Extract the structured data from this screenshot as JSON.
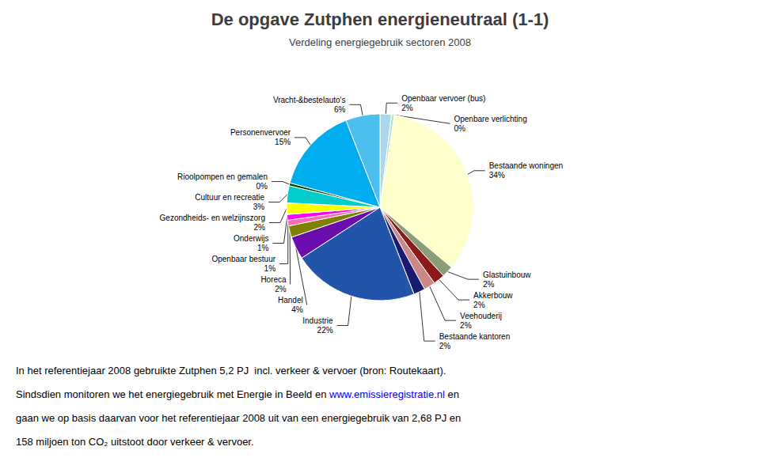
{
  "chart_data": {
    "type": "pie",
    "title": "De opgave Zutphen energieneutraal (1-1)",
    "subtitle": "Verdeling energiegebruik sectoren 2008",
    "categories": [
      "Openbaar vervoer (bus)",
      "Openbare verlichting",
      "Bestaande woningen",
      "Glastuinbouw",
      "Akkerbouw",
      "Veehouderij",
      "Bestaande kantoren",
      "Industrie",
      "Handel",
      "Horeca",
      "Openbaar bestuur",
      "Onderwijs",
      "Gezondheids- en welzijnszorg",
      "Cultuur en recreatie",
      "Rioolpompen en gemalen",
      "Personenvervoer",
      "Vracht-&bestelauto's"
    ],
    "values": [
      2,
      0.5,
      34,
      2,
      2,
      2,
      2,
      22,
      4,
      2,
      1,
      1,
      2,
      3,
      0.5,
      15,
      6
    ],
    "value_labels": [
      "2%",
      "0%",
      "34%",
      "2%",
      "2%",
      "2%",
      "2%",
      "22%",
      "4%",
      "2%",
      "1%",
      "1%",
      "2%",
      "3%",
      "0%",
      "15%",
      "6%"
    ],
    "data_labels": true,
    "colors": [
      "#A8D8EA",
      "#BBDDCC",
      "#FFFFCC",
      "#8B9D77",
      "#8B1A1A",
      "#CC8888",
      "#1A1A6E",
      "#2255AA",
      "#6A0DAD",
      "#808000",
      "#FF69B4",
      "#FF00FF",
      "#FFFF00",
      "#00CCCC",
      "#004400",
      "#00AEEF",
      "#4DBFEF"
    ],
    "annotations": [
      "In het referentiejaar 2008 gebruikte Zutphen 5,2 PJ  incl. verkeer & vervoer (bron: Routekaart).",
      [
        "Sindsdien monitoren we het energiegebruik met Energie in Beeld en ",
        {
          "text": "www.emissieregistratie.nl",
          "color": "#0000EE"
        },
        " en"
      ],
      "gaan we op basis daarvan voor het referentiejaar 2008 uit van een energiegebruik van 2,68 PJ en",
      "158 miljoen ton CO₂ uitstoot door verkeer & vervoer."
    ]
  }
}
